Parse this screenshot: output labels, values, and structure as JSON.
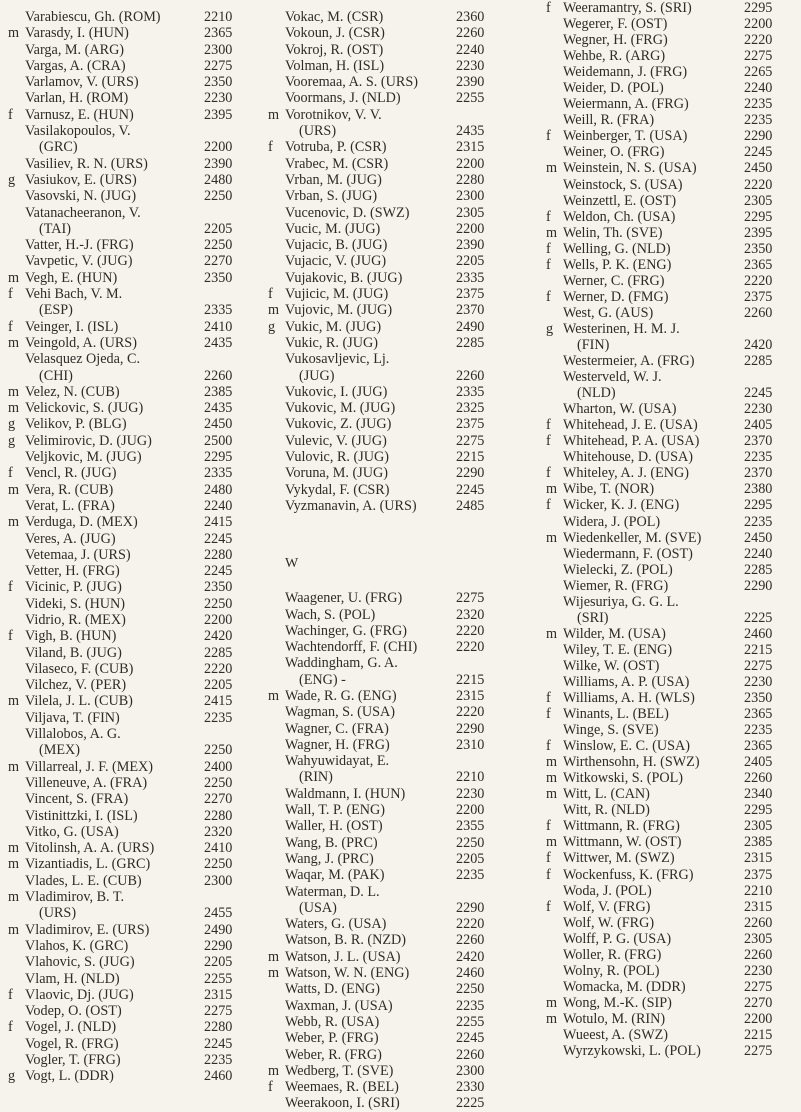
{
  "columns": [
    {
      "entries": [
        {
          "t": "",
          "n": "Varabiescu, Gh. (ROM)",
          "r": "2210"
        },
        {
          "t": "m",
          "n": "Varasdy, I. (HUN)",
          "r": "2365"
        },
        {
          "t": "",
          "n": "Varga, M. (ARG)",
          "r": "2300"
        },
        {
          "t": "",
          "n": "Vargas, A. (CRA)",
          "r": "2275"
        },
        {
          "t": "",
          "n": "Varlamov, V. (URS)",
          "r": "2350"
        },
        {
          "t": "",
          "n": "Varlan, H. (ROM)",
          "r": "2230"
        },
        {
          "t": "f",
          "n": "Varnusz, E. (HUN)",
          "r": "2395"
        },
        {
          "t": "",
          "n": "Vasilakopoulos, V.",
          "c": "(GRC)",
          "r": "2200"
        },
        {
          "t": "",
          "n": "Vasiliev, R. N. (URS)",
          "r": "2390"
        },
        {
          "t": "g",
          "n": "Vasiukov, E. (URS)",
          "r": "2480"
        },
        {
          "t": "",
          "n": "Vasovski, N. (JUG)",
          "r": "2250"
        },
        {
          "t": "",
          "n": "Vatanacheeranon, V.",
          "c": "(TAI)",
          "r": "2205"
        },
        {
          "t": "",
          "n": "Vatter, H.-J. (FRG)",
          "r": "2250"
        },
        {
          "t": "",
          "n": "Vavpetic, V. (JUG)",
          "r": "2270"
        },
        {
          "t": "m",
          "n": "Vegh, E. (HUN)",
          "r": "2350"
        },
        {
          "t": "f",
          "n": "Vehi Bach, V. M.",
          "c": "(ESP)",
          "r": "2335"
        },
        {
          "t": "f",
          "n": "Veinger, I. (ISL)",
          "r": "2410"
        },
        {
          "t": "m",
          "n": "Veingold, A. (URS)",
          "r": "2435"
        },
        {
          "t": "",
          "n": "Velasquez Ojeda, C.",
          "c": "(CHI)",
          "r": "2260"
        },
        {
          "t": "m",
          "n": "Velez, N. (CUB)",
          "r": "2385"
        },
        {
          "t": "m",
          "n": "Velickovic, S. (JUG)",
          "r": "2435"
        },
        {
          "t": "g",
          "n": "Velikov, P. (BLG)",
          "r": "2450"
        },
        {
          "t": "g",
          "n": "Velimirovic, D. (JUG)",
          "r": "2500"
        },
        {
          "t": "",
          "n": "Veljkovic, M. (JUG)",
          "r": "2295"
        },
        {
          "t": "f",
          "n": "Vencl, R. (JUG)",
          "r": "2335"
        },
        {
          "t": "m",
          "n": "Vera, R. (CUB)",
          "r": "2480"
        },
        {
          "t": "",
          "n": "Verat, L. (FRA)",
          "r": "2240"
        },
        {
          "t": "m",
          "n": "Verduga, D. (MEX)",
          "r": "2415"
        },
        {
          "t": "",
          "n": "Veres, A. (JUG)",
          "r": "2245"
        },
        {
          "t": "",
          "n": "Vetemaa, J. (URS)",
          "r": "2280"
        },
        {
          "t": "",
          "n": "Vetter, H. (FRG)",
          "r": "2245"
        },
        {
          "t": "f",
          "n": "Vicinic, P. (JUG)",
          "r": "2350"
        },
        {
          "t": "",
          "n": "Videki, S. (HUN)",
          "r": "2250"
        },
        {
          "t": "",
          "n": "Vidrio, R. (MEX)",
          "r": "2200"
        },
        {
          "t": "f",
          "n": "Vigh, B. (HUN)",
          "r": "2420"
        },
        {
          "t": "",
          "n": "Viland, B. (JUG)",
          "r": "2285"
        },
        {
          "t": "",
          "n": "Vilaseco, F. (CUB)",
          "r": "2220"
        },
        {
          "t": "",
          "n": "Vilchez, V. (PER)",
          "r": "2205"
        },
        {
          "t": "m",
          "n": "Vilela, J. L. (CUB)",
          "r": "2415"
        },
        {
          "t": "",
          "n": "Viljava, T. (FIN)",
          "r": "2235"
        },
        {
          "t": "",
          "n": "Villalobos, A. G.",
          "c": "(MEX)",
          "r": "2250"
        },
        {
          "t": "m",
          "n": "Villarreal, J. F. (MEX)",
          "r": "2400"
        },
        {
          "t": "",
          "n": "Villeneuve, A. (FRA)",
          "r": "2250"
        },
        {
          "t": "",
          "n": "Vincent, S. (FRA)",
          "r": "2270"
        },
        {
          "t": "",
          "n": "Vistinittzki, I. (ISL)",
          "r": "2280"
        },
        {
          "t": "",
          "n": "Vitko, G. (USA)",
          "r": "2320"
        },
        {
          "t": "m",
          "n": "Vitolinsh, A. A. (URS)",
          "r": "2410"
        },
        {
          "t": "m",
          "n": "Vizantiadis, L. (GRC)",
          "r": "2250"
        },
        {
          "t": "",
          "n": "Vlades, L. E. (CUB)",
          "r": "2300"
        },
        {
          "t": "m",
          "n": "Vladimirov, B. T.",
          "c": "(URS)",
          "r": "2455"
        },
        {
          "t": "m",
          "n": "Vladimirov, E. (URS)",
          "r": "2490"
        },
        {
          "t": "",
          "n": "Vlahos, K. (GRC)",
          "r": "2290"
        },
        {
          "t": "",
          "n": "Vlahovic, S. (JUG)",
          "r": "2205"
        },
        {
          "t": "",
          "n": "Vlam, H. (NLD)",
          "r": "2255"
        },
        {
          "t": "f",
          "n": "Vlaovic, Dj. (JUG)",
          "r": "2315"
        },
        {
          "t": "",
          "n": "Vodep, O. (OST)",
          "r": "2275"
        },
        {
          "t": "f",
          "n": "Vogel, J. (NLD)",
          "r": "2280"
        },
        {
          "t": "",
          "n": "Vogel, R. (FRG)",
          "r": "2245"
        },
        {
          "t": "",
          "n": "Vogler, T. (FRG)",
          "r": "2235"
        },
        {
          "t": "g",
          "n": "Vogt, L. (DDR)",
          "r": "2460"
        }
      ]
    },
    {
      "entries": [
        {
          "t": "",
          "n": "Vokac, M. (CSR)",
          "r": "2360"
        },
        {
          "t": "",
          "n": "Vokoun, J. (CSR)",
          "r": "2260"
        },
        {
          "t": "",
          "n": "Vokroj, R. (OST)",
          "r": "2240"
        },
        {
          "t": "",
          "n": "Volman, H. (ISL)",
          "r": "2230"
        },
        {
          "t": "",
          "n": "Vooremaa, A. S. (URS)",
          "r": "2390"
        },
        {
          "t": "",
          "n": "Voormans, J. (NLD)",
          "r": "2255"
        },
        {
          "t": "m",
          "n": "Vorotnikov, V. V.",
          "c": "(URS)",
          "r": "2435"
        },
        {
          "t": "f",
          "n": "Votruba, P. (CSR)",
          "r": "2315"
        },
        {
          "t": "",
          "n": "Vrabec, M. (CSR)",
          "r": "2200"
        },
        {
          "t": "",
          "n": "Vrban, M. (JUG)",
          "r": "2280"
        },
        {
          "t": "",
          "n": "Vrban, S. (JUG)",
          "r": "2300"
        },
        {
          "t": "",
          "n": "Vucenovic, D. (SWZ)",
          "r": "2305"
        },
        {
          "t": "",
          "n": "Vucic, M. (JUG)",
          "r": "2200"
        },
        {
          "t": "",
          "n": "Vujacic, B. (JUG)",
          "r": "2390"
        },
        {
          "t": "",
          "n": "Vujacic, V. (JUG)",
          "r": "2205"
        },
        {
          "t": "",
          "n": "Vujakovic, B. (JUG)",
          "r": "2335"
        },
        {
          "t": "f",
          "n": "Vujicic, M. (JUG)",
          "r": "2375"
        },
        {
          "t": "m",
          "n": "Vujovic, M. (JUG)",
          "r": "2370"
        },
        {
          "t": "g",
          "n": "Vukic, M. (JUG)",
          "r": "2490"
        },
        {
          "t": "",
          "n": "Vukic, R. (JUG)",
          "r": "2285"
        },
        {
          "t": "",
          "n": "Vukosavljevic, Lj.",
          "c": "(JUG)",
          "r": "2260"
        },
        {
          "t": "",
          "n": "Vukovic, I. (JUG)",
          "r": "2335"
        },
        {
          "t": "",
          "n": "Vukovic, M. (JUG)",
          "r": "2325"
        },
        {
          "t": "",
          "n": "Vukovic, Z. (JUG)",
          "r": "2375"
        },
        {
          "t": "",
          "n": "Vulevic, V. (JUG)",
          "r": "2275"
        },
        {
          "t": "",
          "n": "Vulovic, R. (JUG)",
          "r": "2215"
        },
        {
          "t": "",
          "n": "Voruna, M. (JUG)",
          "r": "2290"
        },
        {
          "t": "",
          "n": "Vykydal, F. (CSR)",
          "r": "2245"
        },
        {
          "t": "",
          "n": "Vyzmanavin, A. (URS)",
          "r": "2485"
        }
      ],
      "heading": "W",
      "entries_after": [
        {
          "t": "",
          "n": "Waagener, U. (FRG)",
          "r": "2275"
        },
        {
          "t": "",
          "n": "Wach, S. (POL)",
          "r": "2320"
        },
        {
          "t": "",
          "n": "Wachinger, G. (FRG)",
          "r": "2220"
        },
        {
          "t": "",
          "n": "Wachtendorff, F. (CHI)",
          "r": "2220"
        },
        {
          "t": "",
          "n": "Waddingham, G. A.",
          "c": "(ENG)  -",
          "r": "2215"
        },
        {
          "t": "m",
          "n": "Wade, R. G. (ENG)",
          "r": "2315"
        },
        {
          "t": "",
          "n": "Wagman, S. (USA)",
          "r": "2220"
        },
        {
          "t": "",
          "n": "Wagner, C. (FRA)",
          "r": "2290"
        },
        {
          "t": "",
          "n": "Wagner, H. (FRG)",
          "r": "2310"
        },
        {
          "t": "",
          "n": "Wahyuwidayat, E.",
          "c": "(RIN)",
          "r": "2210"
        },
        {
          "t": "",
          "n": "Waldmann, I. (HUN)",
          "r": "2230"
        },
        {
          "t": "",
          "n": "Wall, T. P. (ENG)",
          "r": "2200"
        },
        {
          "t": "",
          "n": "Waller, H. (OST)",
          "r": "2355"
        },
        {
          "t": "",
          "n": "Wang, B. (PRC)",
          "r": "2250"
        },
        {
          "t": "",
          "n": "Wang, J. (PRC)",
          "r": "2205"
        },
        {
          "t": "",
          "n": "Waqar, M. (PAK)",
          "r": "2235"
        },
        {
          "t": "",
          "n": "Waterman, D. L.",
          "c": "(USA)",
          "r": "2290"
        },
        {
          "t": "",
          "n": "Waters, G. (USA)",
          "r": "2220"
        },
        {
          "t": "",
          "n": "Watson, B. R. (NZD)",
          "r": "2260"
        },
        {
          "t": "m",
          "n": "Watson, J. L. (USA)",
          "r": "2420"
        },
        {
          "t": "m",
          "n": "Watson, W. N. (ENG)",
          "r": "2460"
        },
        {
          "t": "",
          "n": "Watts, D. (ENG)",
          "r": "2250"
        },
        {
          "t": "",
          "n": "Waxman, J. (USA)",
          "r": "2235"
        },
        {
          "t": "",
          "n": "Webb, R. (USA)",
          "r": "2255"
        },
        {
          "t": "",
          "n": "Weber, P. (FRG)",
          "r": "2245"
        },
        {
          "t": "",
          "n": "Weber, R. (FRG)",
          "r": "2260"
        },
        {
          "t": "m",
          "n": "Wedberg, T. (SVE)",
          "r": "2300"
        },
        {
          "t": "f",
          "n": "Weemaes, R. (BEL)",
          "r": "2330"
        },
        {
          "t": "",
          "n": "Weerakoon, I. (SRI)",
          "r": "2225"
        }
      ]
    },
    {
      "entries": [
        {
          "t": "f",
          "n": "Weeramantry, S. (SRI)",
          "r": "2295"
        },
        {
          "t": "",
          "n": "Wegerer, F. (OST)",
          "r": "2200"
        },
        {
          "t": "",
          "n": "Wegner, H. (FRG)",
          "r": "2220"
        },
        {
          "t": "",
          "n": "Wehbe, R. (ARG)",
          "r": "2275"
        },
        {
          "t": "",
          "n": "Weidemann, J. (FRG)",
          "r": "2265"
        },
        {
          "t": "",
          "n": "Weider, D. (POL)",
          "r": "2240"
        },
        {
          "t": "",
          "n": "Weiermann, A. (FRG)",
          "r": "2235"
        },
        {
          "t": "",
          "n": "Weill, R. (FRA)",
          "r": "2235"
        },
        {
          "t": "f",
          "n": "Weinberger, T. (USA)",
          "r": "2290"
        },
        {
          "t": "",
          "n": "Weiner, O. (FRG)",
          "r": "2245"
        },
        {
          "t": "m",
          "n": "Weinstein, N. S. (USA)",
          "r": "2450"
        },
        {
          "t": "",
          "n": "Weinstock, S. (USA)",
          "r": "2220"
        },
        {
          "t": "",
          "n": "Weinzettl, E. (OST)",
          "r": "2305"
        },
        {
          "t": "f",
          "n": "Weldon, Ch. (USA)",
          "r": "2295"
        },
        {
          "t": "m",
          "n": "Welin, Th. (SVE)",
          "r": "2395"
        },
        {
          "t": "f",
          "n": "Welling, G. (NLD)",
          "r": "2350"
        },
        {
          "t": "f",
          "n": "Wells, P. K. (ENG)",
          "r": "2365"
        },
        {
          "t": "",
          "n": "Werner, C. (FRG)",
          "r": "2220"
        },
        {
          "t": "f",
          "n": "Werner, D. (FMG)",
          "r": "2375"
        },
        {
          "t": "",
          "n": "West, G. (AUS)",
          "r": "2260"
        },
        {
          "t": "g",
          "n": "Westerinen, H. M. J.",
          "c": "(FIN)",
          "r": "2420"
        },
        {
          "t": "",
          "n": "Westermeier, A. (FRG)",
          "r": "2285"
        },
        {
          "t": "",
          "n": "Westerveld, W. J.",
          "c": "(NLD)",
          "r": "2245"
        },
        {
          "t": "",
          "n": "Wharton, W. (USA)",
          "r": "2230"
        },
        {
          "t": "f",
          "n": "Whitehead, J. E. (USA)",
          "r": "2405"
        },
        {
          "t": "f",
          "n": "Whitehead, P. A. (USA)",
          "r": "2370"
        },
        {
          "t": "",
          "n": "Whitehouse, D. (USA)",
          "r": "2235"
        },
        {
          "t": "f",
          "n": "Whiteley, A. J. (ENG)",
          "r": "2370"
        },
        {
          "t": "m",
          "n": "Wibe, T. (NOR)",
          "r": "2380"
        },
        {
          "t": "f",
          "n": "Wicker, K. J. (ENG)",
          "r": "2295"
        },
        {
          "t": "",
          "n": "Widera, J. (POL)",
          "r": "2235"
        },
        {
          "t": "m",
          "n": "Wiedenkeller, M. (SVE)",
          "r": "2450"
        },
        {
          "t": "",
          "n": "Wiedermann, F. (OST)",
          "r": "2240"
        },
        {
          "t": "",
          "n": "Wielecki, Z. (POL)",
          "r": "2285"
        },
        {
          "t": "",
          "n": "Wiemer, R. (FRG)",
          "r": "2290"
        },
        {
          "t": "",
          "n": "Wijesuriya, G. G. L.",
          "c": "(SRI)",
          "r": "2225"
        },
        {
          "t": "m",
          "n": "Wilder, M. (USA)",
          "r": "2460"
        },
        {
          "t": "",
          "n": "Wiley, T. E. (ENG)",
          "r": "2215"
        },
        {
          "t": "",
          "n": "Wilke, W. (OST)",
          "r": "2275"
        },
        {
          "t": "",
          "n": "Williams, A. P. (USA)",
          "r": "2230"
        },
        {
          "t": "f",
          "n": "Williams, A. H. (WLS)",
          "r": "2350"
        },
        {
          "t": "f",
          "n": "Winants, L. (BEL)",
          "r": "2365"
        },
        {
          "t": "",
          "n": "Winge, S. (SVE)",
          "r": "2235"
        },
        {
          "t": "f",
          "n": "Winslow, E. C. (USA)",
          "r": "2365"
        },
        {
          "t": "m",
          "n": "Wirthensohn, H. (SWZ)",
          "r": "2405"
        },
        {
          "t": "m",
          "n": "Witkowski, S. (POL)",
          "r": "2260"
        },
        {
          "t": "m",
          "n": "Witt, L. (CAN)",
          "r": "2340"
        },
        {
          "t": "",
          "n": "Witt, R. (NLD)",
          "r": "2295"
        },
        {
          "t": "f",
          "n": "Wittmann, R. (FRG)",
          "r": "2305"
        },
        {
          "t": "m",
          "n": "Wittmann, W. (OST)",
          "r": "2385"
        },
        {
          "t": "f",
          "n": "Wittwer, M. (SWZ)",
          "r": "2315"
        },
        {
          "t": "f",
          "n": "Wockenfuss, K. (FRG)",
          "r": "2375"
        },
        {
          "t": "",
          "n": "Woda, J. (POL)",
          "r": "2210"
        },
        {
          "t": "f",
          "n": "Wolf, V. (FRG)",
          "r": "2315"
        },
        {
          "t": "",
          "n": "Wolf, W. (FRG)",
          "r": "2260"
        },
        {
          "t": "",
          "n": "Wolff, P. G. (USA)",
          "r": "2305"
        },
        {
          "t": "",
          "n": "Woller, R. (FRG)",
          "r": "2260"
        },
        {
          "t": "",
          "n": "Wolny, R. (POL)",
          "r": "2230"
        },
        {
          "t": "",
          "n": "Womacka, M. (DDR)",
          "r": "2275"
        },
        {
          "t": "m",
          "n": "Wong, M.-K. (SIP)",
          "r": "2270"
        },
        {
          "t": "m",
          "n": "Wotulo, M. (RIN)",
          "r": "2200"
        },
        {
          "t": "",
          "n": "Wueest, A. (SWZ)",
          "r": "2215"
        },
        {
          "t": "",
          "n": "Wyrzykowski, L. (POL)",
          "r": "2275"
        }
      ]
    }
  ]
}
